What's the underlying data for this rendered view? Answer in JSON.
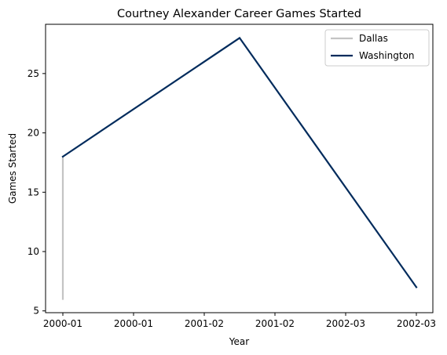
{
  "chart_data": {
    "type": "line",
    "title": "Courtney Alexander Career Games Started",
    "xlabel": "Year",
    "ylabel": "Games Started",
    "x_tick_labels": [
      "2000-01",
      "2000-01",
      "2001-02",
      "2001-02",
      "2002-03",
      "2002-03"
    ],
    "xlim": [
      0,
      2
    ],
    "ylim": [
      4.85,
      29.15
    ],
    "y_ticks": [
      5,
      10,
      15,
      20,
      25
    ],
    "grid": false,
    "legend_position": "top-right",
    "series": [
      {
        "name": "Dallas",
        "color": "#c4c4c4",
        "x": [
          0,
          0
        ],
        "y": [
          6,
          18
        ]
      },
      {
        "name": "Washington",
        "color": "#002b5c",
        "x": [
          0,
          1,
          2
        ],
        "y": [
          18,
          28,
          7
        ]
      }
    ]
  }
}
